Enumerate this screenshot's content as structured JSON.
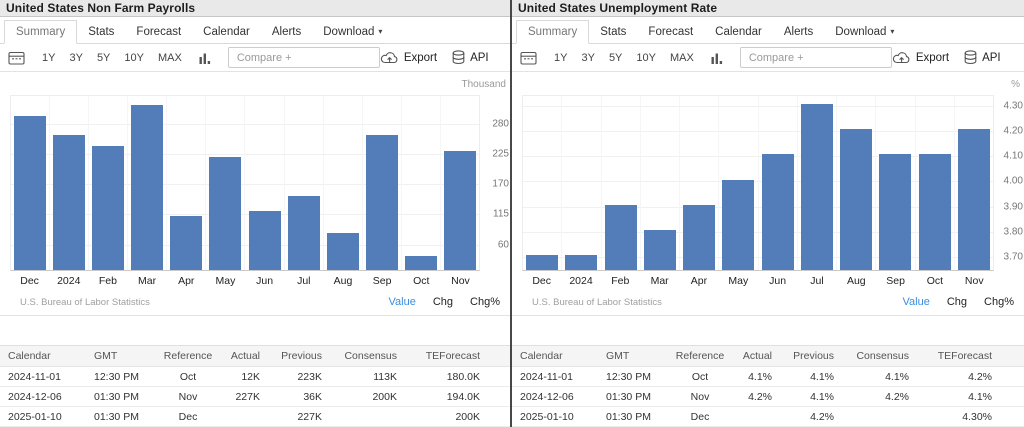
{
  "colors": {
    "bar": "#537db8",
    "legend_active": "#3a8dde",
    "divider": "#474747"
  },
  "icons": {
    "calendar": "calendar-grid",
    "bar_chart": "mini-bar-columns",
    "export": "cloud-upload-arrow",
    "api": "database-cylinder",
    "menu_glyph": "⋮",
    "caret_glyph": "▾"
  },
  "panels": [
    {
      "title": "United States Non Farm Payrolls",
      "tabs": [
        {
          "label": "Summary",
          "active": true
        },
        {
          "label": "Stats"
        },
        {
          "label": "Forecast"
        },
        {
          "label": "Calendar"
        },
        {
          "label": "Alerts"
        },
        {
          "label": "Download",
          "caret": true
        }
      ],
      "toolbar": {
        "ranges": [
          "1Y",
          "3Y",
          "5Y",
          "10Y",
          "MAX"
        ],
        "compare_placeholder": "Compare +",
        "export_label": "Export",
        "api_label": "API"
      },
      "chart_data": {
        "type": "bar",
        "title": "United States Non Farm Payrolls",
        "unit_label": "Thousand",
        "categories": [
          "Dec",
          "2024",
          "Feb",
          "Mar",
          "Apr",
          "May",
          "Jun",
          "Jul",
          "Aug",
          "Sep",
          "Oct",
          "Nov"
        ],
        "values": [
          290,
          256,
          236,
          310,
          108,
          216,
          118,
          144,
          78,
          255,
          36,
          227
        ],
        "ytick_labels": [
          "280",
          "225",
          "170",
          "115",
          "60"
        ],
        "ylim": [
          10,
          330
        ],
        "grid": true,
        "legend_position": "bottom-right",
        "source": "U.S. Bureau of Labor Statistics",
        "legend": [
          {
            "label": "Value",
            "active": true
          },
          {
            "label": "Chg"
          },
          {
            "label": "Chg%"
          }
        ]
      },
      "table": {
        "headers": [
          "Calendar",
          "GMT",
          "Reference",
          "Actual",
          "Previous",
          "Consensus",
          "TEForecast"
        ],
        "rows": [
          [
            "2024-11-01",
            "12:30 PM",
            "Oct",
            "12K",
            "223K",
            "113K",
            "180.0K"
          ],
          [
            "2024-12-06",
            "01:30 PM",
            "Nov",
            "227K",
            "36K",
            "200K",
            "194.0K"
          ],
          [
            "2025-01-10",
            "01:30 PM",
            "Dec",
            "",
            "227K",
            "",
            "200K"
          ]
        ]
      }
    },
    {
      "title": "United States Unemployment Rate",
      "tabs": [
        {
          "label": "Summary",
          "active": true
        },
        {
          "label": "Stats"
        },
        {
          "label": "Forecast"
        },
        {
          "label": "Calendar"
        },
        {
          "label": "Alerts"
        },
        {
          "label": "Download",
          "caret": true
        }
      ],
      "toolbar": {
        "ranges": [
          "1Y",
          "3Y",
          "5Y",
          "10Y",
          "MAX"
        ],
        "compare_placeholder": "Compare +",
        "export_label": "Export",
        "api_label": "API"
      },
      "chart_data": {
        "type": "bar",
        "title": "United States Unemployment Rate",
        "unit_label": "%",
        "categories": [
          "Dec",
          "2024",
          "Feb",
          "Mar",
          "Apr",
          "May",
          "Jun",
          "Jul",
          "Aug",
          "Sep",
          "Oct",
          "Nov"
        ],
        "values": [
          3.7,
          3.7,
          3.9,
          3.8,
          3.9,
          4.0,
          4.1,
          4.3,
          4.2,
          4.1,
          4.1,
          4.2
        ],
        "ytick_labels": [
          "4.30",
          "4.20",
          "4.10",
          "4.00",
          "3.90",
          "3.80",
          "3.70"
        ],
        "ylim": [
          3.64,
          4.34
        ],
        "grid": true,
        "legend_position": "bottom-right",
        "source": "U.S. Bureau of Labor Statistics",
        "legend": [
          {
            "label": "Value",
            "active": true
          },
          {
            "label": "Chg"
          },
          {
            "label": "Chg%"
          }
        ]
      },
      "table": {
        "headers": [
          "Calendar",
          "GMT",
          "Reference",
          "Actual",
          "Previous",
          "Consensus",
          "TEForecast"
        ],
        "rows": [
          [
            "2024-11-01",
            "12:30 PM",
            "Oct",
            "4.1%",
            "4.1%",
            "4.1%",
            "4.2%"
          ],
          [
            "2024-12-06",
            "01:30 PM",
            "Nov",
            "4.2%",
            "4.1%",
            "4.2%",
            "4.1%"
          ],
          [
            "2025-01-10",
            "01:30 PM",
            "Dec",
            "",
            "4.2%",
            "",
            "4.30%"
          ]
        ]
      }
    }
  ]
}
